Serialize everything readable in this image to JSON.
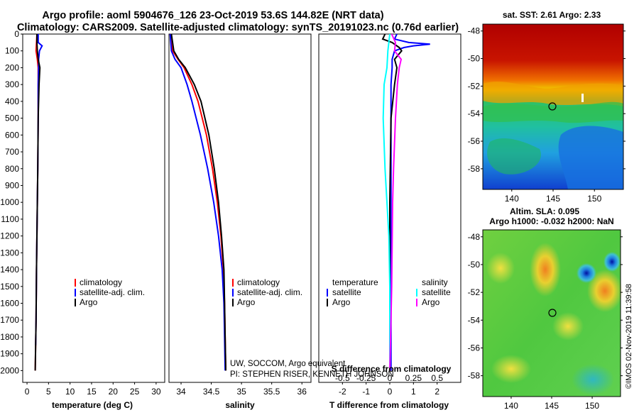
{
  "header": {
    "line1": "Argo profile: aoml 5904676_126 23-Oct-2019 53.6S 144.82E (NRT data)",
    "line2": "Climatology: CARS2009. Satellite-adjusted climatology: synTS_20191023.nc (0.76d earlier)"
  },
  "depth_axis": {
    "ticks": [
      "0",
      "100",
      "200",
      "300",
      "400",
      "500",
      "600",
      "700",
      "800",
      "900",
      "1000",
      "1100",
      "1200",
      "1300",
      "1400",
      "1500",
      "1600",
      "1700",
      "1800",
      "1900",
      "2000"
    ]
  },
  "chart_data": [
    {
      "type": "line",
      "title": "",
      "xlabel": "temperature (deg C)",
      "ylabel": "depth",
      "xlim": [
        -1,
        32
      ],
      "ylim": [
        2070,
        0
      ],
      "xticks": [
        "0",
        "5",
        "10",
        "15",
        "20",
        "25",
        "30"
      ],
      "legend": [
        "climatology",
        "satellite-adj. clim.",
        "Argo"
      ],
      "legend_colors": [
        "#ff0000",
        "#0000ff",
        "#000000"
      ],
      "series": [
        {
          "name": "climatology",
          "color": "#ff0000",
          "depth": [
            0,
            50,
            100,
            150,
            200,
            300,
            500,
            800,
            1000,
            1400,
            1700,
            2000
          ],
          "values": [
            2.3,
            2.2,
            2.1,
            2.4,
            2.6,
            2.6,
            2.6,
            2.5,
            2.4,
            2.2,
            2.1,
            1.9
          ]
        },
        {
          "name": "satellite-adj. clim.",
          "color": "#0000ff",
          "depth": [
            0,
            50,
            70,
            100,
            150,
            200,
            300,
            500,
            800,
            1000,
            1400,
            1700,
            1850
          ],
          "values": [
            2.6,
            2.6,
            3.5,
            2.9,
            2.7,
            2.7,
            2.6,
            2.6,
            2.5,
            2.4,
            2.2,
            2.1,
            2.0
          ]
        },
        {
          "name": "Argo",
          "color": "#000000",
          "depth": [
            0,
            50,
            100,
            150,
            200,
            300,
            500,
            800,
            1000,
            1400,
            1700,
            2000
          ],
          "values": [
            2.3,
            2.3,
            2.4,
            2.6,
            3.0,
            2.8,
            2.6,
            2.5,
            2.4,
            2.2,
            2.1,
            1.9
          ]
        }
      ]
    },
    {
      "type": "line",
      "xlabel": "salinity",
      "ylabel": "depth",
      "xlim": [
        33.8,
        36.15
      ],
      "ylim": [
        2070,
        0
      ],
      "xticks": [
        "34",
        "34.5",
        "35",
        "35.5",
        "36"
      ],
      "legend": [
        "climatology",
        "satellite-adj. clim.",
        "Argo"
      ],
      "legend_colors": [
        "#ff0000",
        "#0000ff",
        "#000000"
      ],
      "annotation": [
        "UW, SOCCOM, Argo equivalent",
        "PI: STEPHEN RISER, KENNETH JOHNSON"
      ],
      "series": [
        {
          "name": "climatology",
          "color": "#ff0000",
          "depth": [
            0,
            100,
            150,
            200,
            300,
            400,
            600,
            800,
            1000,
            1200,
            1400,
            1600,
            1800,
            2000
          ],
          "values": [
            33.82,
            33.86,
            33.95,
            34.05,
            34.18,
            34.28,
            34.42,
            34.52,
            34.6,
            34.66,
            34.7,
            34.72,
            34.73,
            34.74
          ]
        },
        {
          "name": "satellite-adj. clim.",
          "color": "#0000ff",
          "depth": [
            0,
            100,
            150,
            200,
            300,
            400,
            600,
            800,
            1000,
            1200,
            1400,
            1600,
            1800,
            2000
          ],
          "values": [
            33.82,
            33.84,
            33.9,
            34.0,
            34.1,
            34.18,
            34.32,
            34.44,
            34.54,
            34.62,
            34.68,
            34.71,
            34.72,
            34.73
          ]
        },
        {
          "name": "Argo",
          "color": "#000000",
          "depth": [
            0,
            100,
            150,
            200,
            300,
            400,
            600,
            800,
            1000,
            1200,
            1400,
            1600,
            1800,
            2000
          ],
          "values": [
            33.84,
            33.88,
            33.96,
            34.07,
            34.22,
            34.33,
            34.46,
            34.55,
            34.62,
            34.67,
            34.71,
            34.72,
            34.73,
            34.74
          ]
        }
      ]
    },
    {
      "type": "line",
      "xlabel": "T difference from climatology",
      "xlabel_top": "S difference from climatology",
      "ylabel": "depth",
      "xlim": [
        -3,
        3
      ],
      "s_xlim": [
        -0.75,
        0.75
      ],
      "ylim": [
        2070,
        0
      ],
      "xticks": [
        "-2",
        "-1",
        "0",
        "1",
        "2"
      ],
      "s_xticks": [
        "-0.5",
        "-0.25",
        "0",
        "0.25",
        "0.5"
      ],
      "legend_left_title": "temperature",
      "legend_left": [
        "satellite",
        "Argo"
      ],
      "legend_left_colors": [
        "#0000ff",
        "#000000"
      ],
      "legend_right_title": "salinity",
      "legend_right": [
        "satellite",
        "Argo"
      ],
      "legend_right_colors": [
        "#00ffff",
        "#ff00ff"
      ],
      "series": [
        {
          "name": "T satellite",
          "color": "#0000ff",
          "axis": "T",
          "depth": [
            0,
            30,
            50,
            60,
            70,
            80,
            100,
            150,
            200,
            300,
            500,
            1000,
            1500,
            2000
          ],
          "values": [
            0.3,
            0.2,
            0.8,
            1.7,
            1.0,
            0.6,
            0.2,
            0.1,
            0.1,
            0.05,
            0.05,
            0.05,
            0.05,
            0.05
          ]
        },
        {
          "name": "T Argo",
          "color": "#000000",
          "axis": "T",
          "depth": [
            0,
            30,
            50,
            80,
            100,
            150,
            200,
            300,
            500,
            1000,
            1500,
            1850
          ],
          "values": [
            -0.2,
            -0.3,
            0.1,
            0.4,
            0.5,
            0.2,
            0.3,
            0.2,
            0.05,
            0.0,
            0.0,
            0.0
          ]
        },
        {
          "name": "S satellite",
          "color": "#00ffff",
          "axis": "S",
          "depth": [
            0,
            100,
            200,
            300,
            500,
            800,
            1000,
            1200,
            1500,
            1800,
            2000
          ],
          "values": [
            0.0,
            -0.02,
            -0.03,
            -0.06,
            -0.07,
            -0.05,
            -0.03,
            -0.01,
            0.0,
            0.0,
            0.0
          ]
        },
        {
          "name": "S Argo",
          "color": "#ff00ff",
          "axis": "S",
          "depth": [
            0,
            50,
            100,
            150,
            200,
            300,
            500,
            800,
            1000,
            1500,
            2000
          ],
          "values": [
            0.02,
            0.06,
            0.05,
            0.12,
            0.1,
            0.08,
            0.06,
            0.04,
            0.03,
            0.02,
            0.0
          ]
        }
      ]
    }
  ],
  "maps": {
    "top_title": "sat. SST: 2.61 Argo: 2.33",
    "bottom_title_1": "Altim. SLA: 0.095",
    "bottom_title_2": "Argo h1000: -0.032 h2000: NaN",
    "lat_ticks": [
      "-48",
      "-50",
      "-52",
      "-54",
      "-56",
      "-58"
    ],
    "lon_ticks": [
      "140",
      "145",
      "150"
    ],
    "float_lat": -53.6,
    "float_lon": 144.82
  },
  "watermark": "©IMOS 02-Nov-2019 11:39:58"
}
